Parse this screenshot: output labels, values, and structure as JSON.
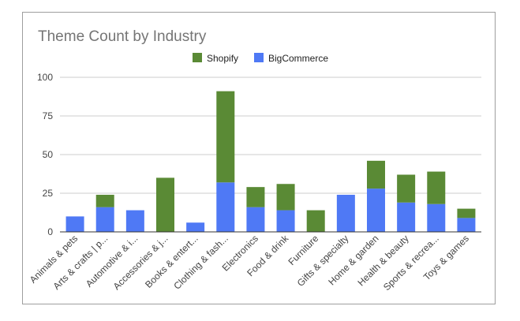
{
  "chart_data": {
    "type": "bar",
    "stacked": true,
    "title": "Theme Count by Industry",
    "legend_position": "top",
    "grid": true,
    "ylim": [
      0,
      100
    ],
    "yticks": [
      0,
      25,
      50,
      75,
      100
    ],
    "categories": [
      "Animals & pets",
      "Arts & crafts | p...",
      "Automotive & i...",
      "Accessories & j...",
      "Books & entert...",
      "Clothing & fash...",
      "Electronics",
      "Food & drink",
      "Furniture",
      "Gifts & specialty",
      "Home & garden",
      "Health & beauty",
      "Sports & recrea...",
      "Toys & games"
    ],
    "series": [
      {
        "name": "Shopify",
        "color": "#5a8a35",
        "values": [
          0,
          8,
          0,
          35,
          0,
          59,
          13,
          17,
          14,
          0,
          18,
          18,
          21,
          6
        ]
      },
      {
        "name": "BigCommerce",
        "color": "#4f79f5",
        "values": [
          10,
          16,
          14,
          0,
          6,
          32,
          16,
          14,
          0,
          24,
          28,
          19,
          18,
          9
        ]
      }
    ]
  }
}
